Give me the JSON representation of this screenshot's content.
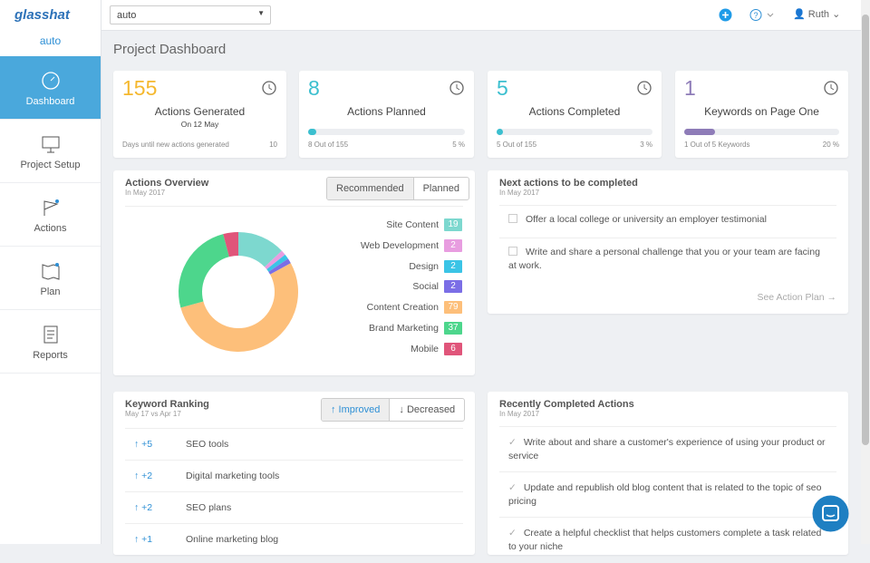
{
  "sidebar": {
    "logo": "glasshat",
    "project": "auto",
    "nav": [
      "Dashboard",
      "Project Setup",
      "Actions",
      "Plan",
      "Reports"
    ]
  },
  "topbar": {
    "select": "auto",
    "user": "Ruth"
  },
  "page_title": "Project Dashboard",
  "stats": [
    {
      "value": 155,
      "label": "Actions Generated",
      "sub": "On 12 May",
      "foot_left": "Days until new actions generated",
      "foot_right": 10,
      "color": "#f5b82e"
    },
    {
      "value": 8,
      "label": "Actions Planned",
      "progress": 5,
      "progress_label": "5 %",
      "foot_left": "8 Out of 155",
      "color": "#3bbfcf"
    },
    {
      "value": 5,
      "label": "Actions Completed",
      "progress": 3,
      "progress_label": "3 %",
      "foot_left": "5 Out of 155",
      "color": "#3bbfcf"
    },
    {
      "value": 1,
      "label": "Keywords on Page One",
      "progress": 20,
      "progress_label": "20 %",
      "foot_left": "1 Out of 5 Keywords",
      "color": "#8e7cb8"
    }
  ],
  "actions_overview": {
    "title": "Actions Overview",
    "subtitle": "In May 2017",
    "tabs": [
      "Recommended",
      "Planned"
    ],
    "chart": {
      "type": "donut",
      "categories": [
        "Site Content",
        "Web Development",
        "Design",
        "Social",
        "Content Creation",
        "Brand Marketing",
        "Mobile"
      ],
      "values": [
        19,
        2,
        2,
        2,
        79,
        37,
        6
      ],
      "colors": [
        "#7dd8cf",
        "#e89de0",
        "#3bc4e6",
        "#7b6ee6",
        "#fdbf7a",
        "#4dd68c",
        "#e0557a"
      ]
    }
  },
  "next_actions": {
    "title": "Next actions to be completed",
    "subtitle": "In May 2017",
    "items": [
      "Offer a local college or university an employer testimonial",
      "Write and share a personal challenge that you or your team are facing at work."
    ],
    "link": "See Action Plan →"
  },
  "keyword_ranking": {
    "title": "Keyword Ranking",
    "subtitle": "May 17 vs Apr 17",
    "tabs": [
      "↑ Improved",
      "↓ Decreased"
    ],
    "rows": [
      [
        "↑ +5",
        "SEO tools"
      ],
      [
        "↑ +2",
        "Digital marketing tools"
      ],
      [
        "↑ +2",
        "SEO plans"
      ],
      [
        "↑ +1",
        "Online marketing blog"
      ]
    ]
  },
  "recent_actions": {
    "title": "Recently Completed Actions",
    "subtitle": "In May 2017",
    "items": [
      "Write about and share a customer's experience of using your product or service",
      "Update and republish old blog content that is related to the topic of seo pricing",
      "Create a helpful checklist that helps customers complete a task related to your niche"
    ]
  }
}
